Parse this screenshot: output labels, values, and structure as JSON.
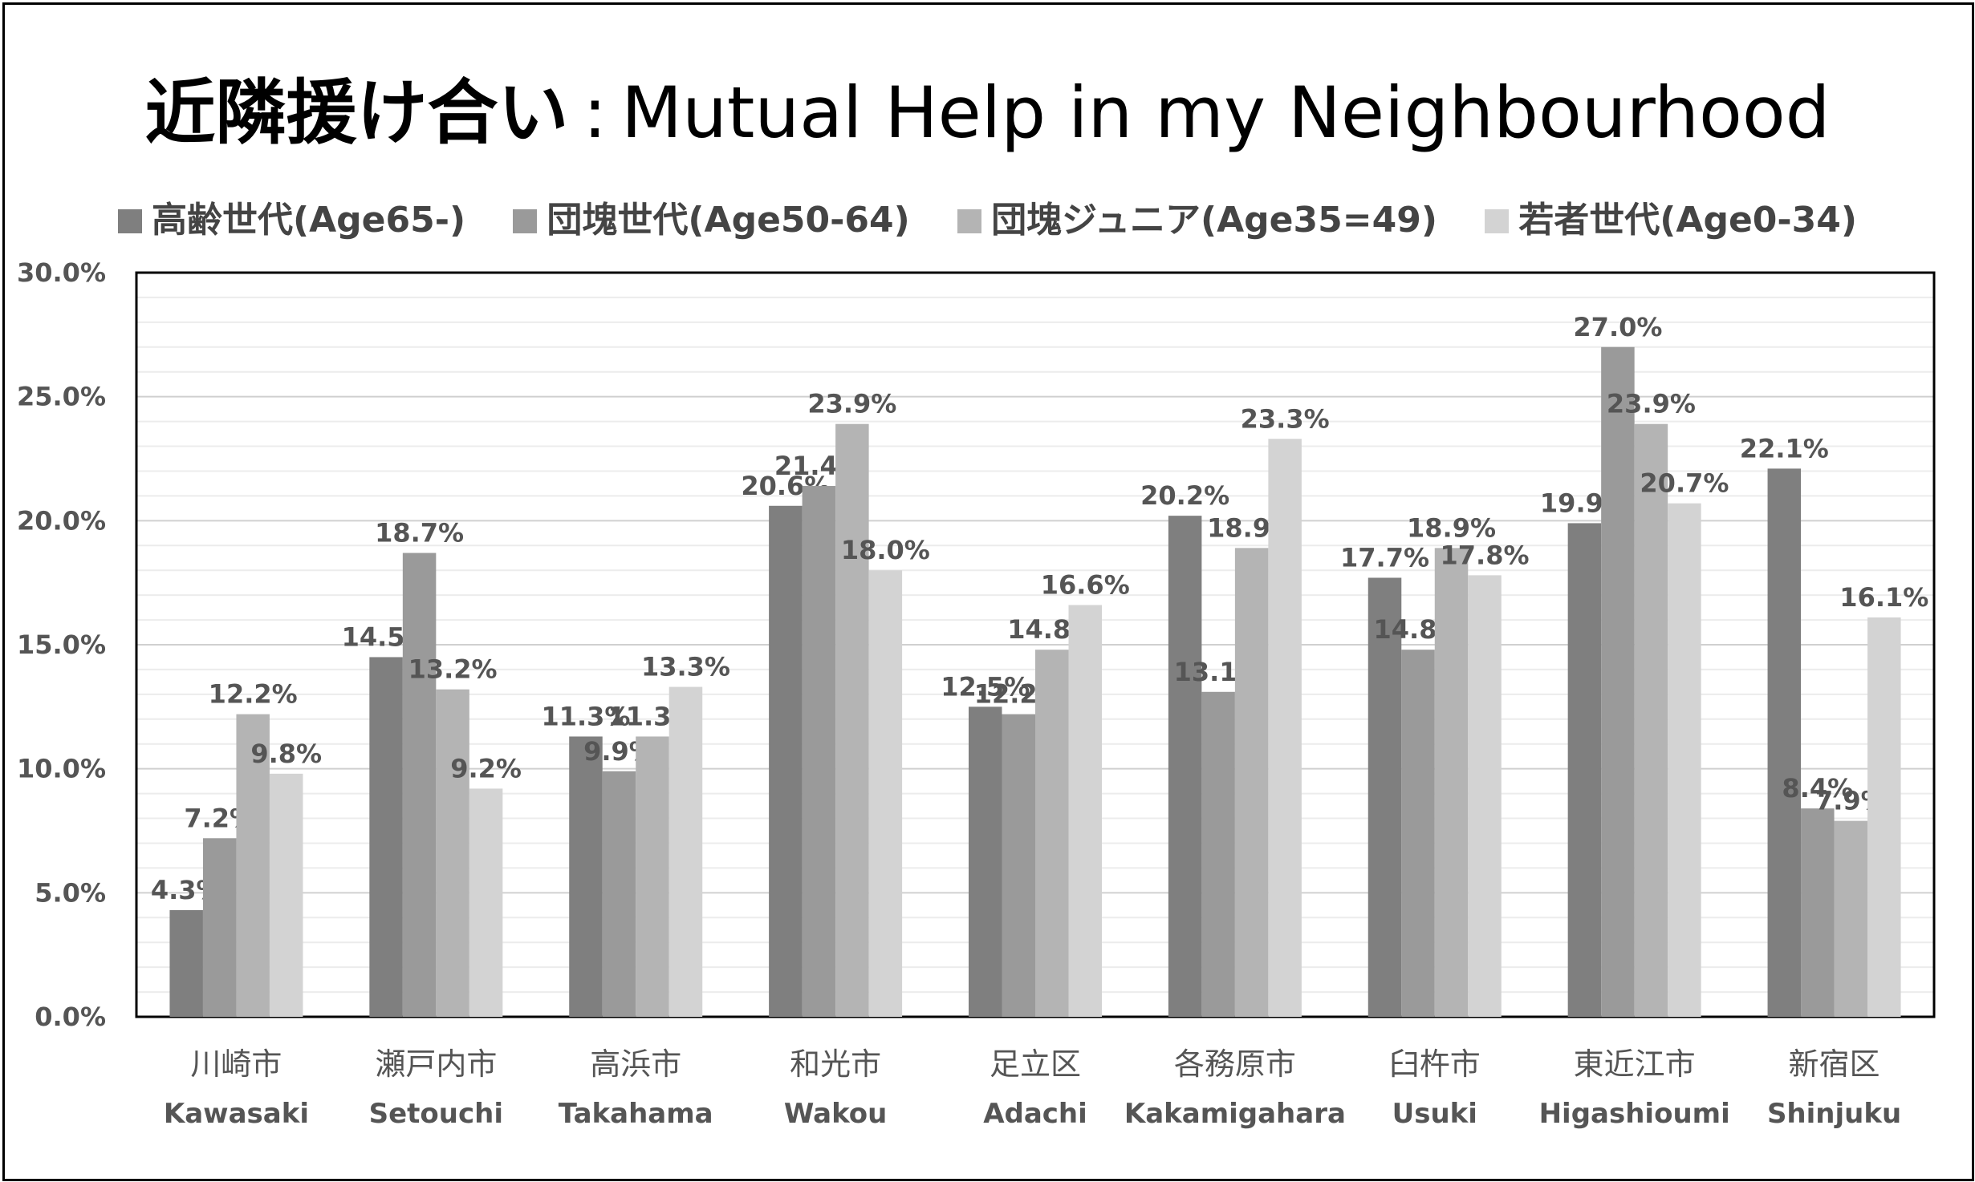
{
  "chart_data": {
    "type": "bar",
    "title_jp": "近隣援け合い",
    "title_sep": ":",
    "title_en": "Mutual Help in my Neighbourhood",
    "ylim": [
      0,
      0.3
    ],
    "yticks": [
      "0.0%",
      "5.0%",
      "10.0%",
      "15.0%",
      "20.0%",
      "25.0%",
      "30.0%"
    ],
    "grid": true,
    "legend_position": "top",
    "categories": [
      {
        "jp": "川崎市",
        "en": "Kawasaki"
      },
      {
        "jp": "瀬戸内市",
        "en": "Setouchi"
      },
      {
        "jp": "高浜市",
        "en": "Takahama"
      },
      {
        "jp": "和光市",
        "en": "Wakou"
      },
      {
        "jp": "足立区",
        "en": "Adachi"
      },
      {
        "jp": "各務原市",
        "en": "Kakamigahara"
      },
      {
        "jp": "臼杵市",
        "en": "Usuki"
      },
      {
        "jp": "東近江市",
        "en": "Higashioumi"
      },
      {
        "jp": "新宿区",
        "en": "Shinjuku"
      }
    ],
    "series": [
      {
        "name": "高齢世代(Age65-)",
        "color": "#7f7f7f",
        "values": [
          0.043,
          0.145,
          0.113,
          0.206,
          0.125,
          0.202,
          0.177,
          0.199,
          0.221
        ],
        "labels": [
          "4.3%",
          "14.5%",
          "11.3%",
          "20.6%",
          "12.5%",
          "20.2%",
          "17.7%",
          "19.9%",
          "22.1%"
        ]
      },
      {
        "name": "団塊世代(Age50-64)",
        "color": "#9a9a9a",
        "values": [
          0.072,
          0.187,
          0.099,
          0.214,
          0.122,
          0.131,
          0.148,
          0.27,
          0.084
        ],
        "labels": [
          "7.2%",
          "18.7%",
          "9.9%",
          "21.4%",
          "12.2%",
          "13.1%",
          "14.8%",
          "27.0%",
          "8.4%"
        ]
      },
      {
        "name": "団塊ジュニア(Age35=49)",
        "color": "#b4b4b4",
        "values": [
          0.122,
          0.132,
          0.113,
          0.239,
          0.148,
          0.189,
          0.189,
          0.239,
          0.079
        ],
        "labels": [
          "12.2%",
          "13.2%",
          "11.3%",
          "23.9%",
          "14.8%",
          "18.9%",
          "18.9%",
          "23.9%",
          "7.9%"
        ]
      },
      {
        "name": "若者世代(Age0-34)",
        "color": "#d3d3d3",
        "values": [
          0.098,
          0.092,
          0.133,
          0.18,
          0.166,
          0.233,
          0.178,
          0.207,
          0.161
        ],
        "labels": [
          "9.8%",
          "9.2%",
          "13.3%",
          "18.0%",
          "16.6%",
          "23.3%",
          "17.8%",
          "20.7%",
          "16.1%"
        ]
      }
    ]
  }
}
